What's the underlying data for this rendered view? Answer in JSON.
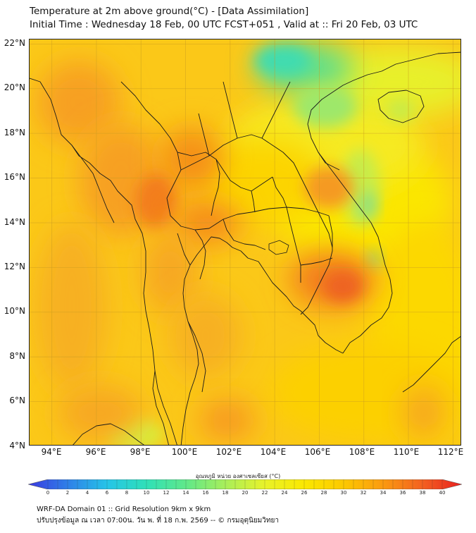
{
  "header": {
    "title_line1": "Temperature at 2m above ground(°C) - [Data Assimilation]",
    "title_line2": "Initial Time : Wednesday 18 Feb, 00 UTC FCST+051 , Valid at :: Fri 20 Feb, 03 UTC"
  },
  "map": {
    "lat_labels": [
      "22°N",
      "20°N",
      "18°N",
      "16°N",
      "14°N",
      "12°N",
      "10°N",
      "8°N",
      "6°N",
      "4°N"
    ],
    "lon_labels": [
      "94°E",
      "96°E",
      "98°E",
      "100°E",
      "102°E",
      "104°E",
      "106°E",
      "108°E",
      "110°E",
      "112°E"
    ],
    "lat_range": [
      4,
      22.2
    ],
    "lon_range": [
      93,
      112.4
    ]
  },
  "colorbar": {
    "title": "อุณหภูมิ หน่วย องศาเซลเซียส (°C)",
    "min": 0,
    "max": 40,
    "tick_labels": [
      "0",
      "2",
      "4",
      "6",
      "8",
      "10",
      "12",
      "14",
      "16",
      "18",
      "20",
      "22",
      "24",
      "26",
      "28",
      "30",
      "32",
      "34",
      "36",
      "38",
      "40"
    ],
    "colors": [
      "#3a3ae0",
      "#2f7fe8",
      "#25c4e8",
      "#2fe0b8",
      "#5fe88a",
      "#a8ee5a",
      "#e8f22a",
      "#fbe800",
      "#fcc800",
      "#fb9a10",
      "#f36020",
      "#e82020"
    ]
  },
  "footer": {
    "line1": "WRF-DA Domain 01 :: Grid Resolution 9km x 9km",
    "line2": "ปรับปรุงข้อมูล ณ เวลา 07:00น. วัน พ. ที่ 18 ก.พ. 2569 -- © กรมอุตุนิยมวิทยา"
  }
}
